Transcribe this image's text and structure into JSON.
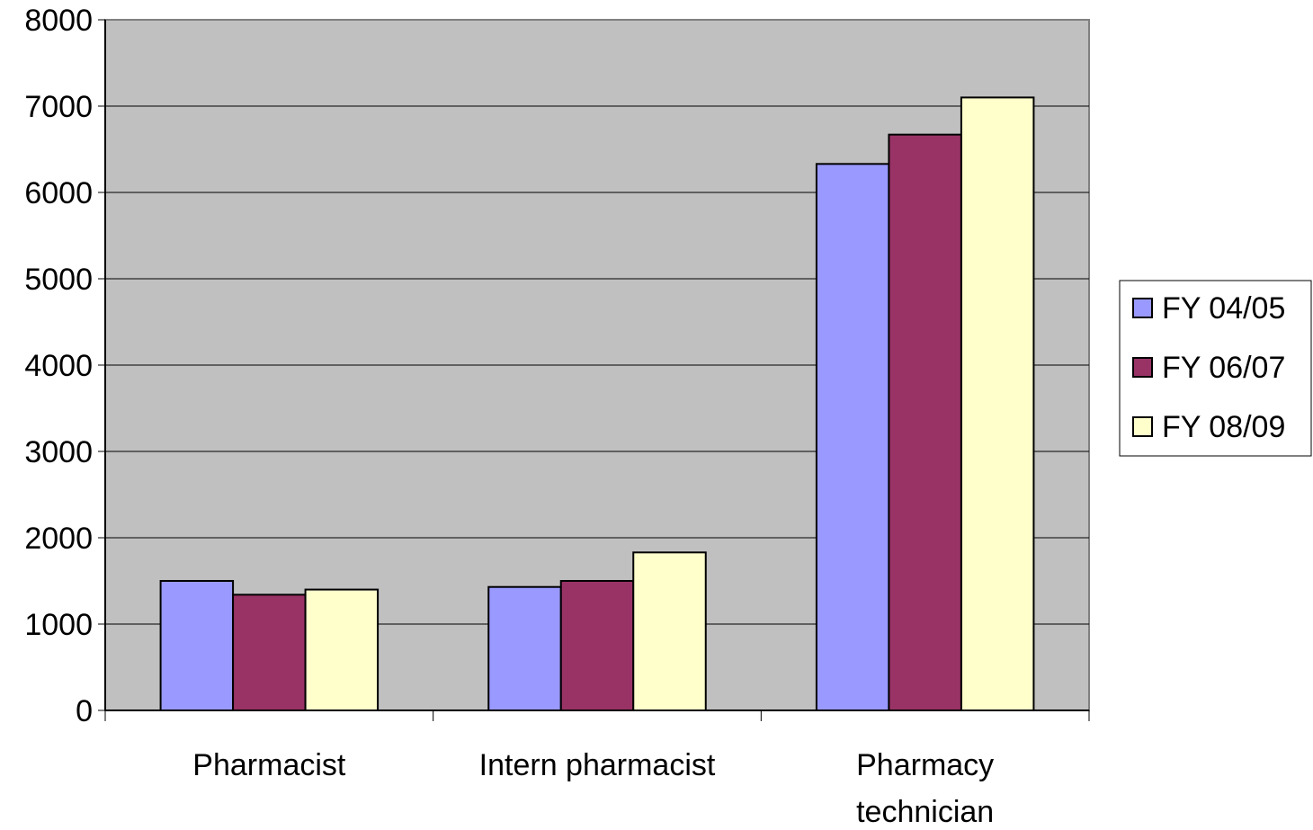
{
  "chart_data": {
    "type": "bar",
    "title": "",
    "xlabel": "",
    "ylabel": "",
    "categories": [
      [
        "Pharmacist"
      ],
      [
        "Intern pharmacist"
      ],
      [
        "Pharmacy",
        "technician"
      ]
    ],
    "series": [
      {
        "name": "FY 04/05",
        "color": "#9999ff",
        "values": [
          1500,
          1430,
          6330
        ]
      },
      {
        "name": "FY 06/07",
        "color": "#993366",
        "values": [
          1340,
          1500,
          6670
        ]
      },
      {
        "name": "FY 08/09",
        "color": "#ffffcc",
        "values": [
          1400,
          1830,
          7100
        ]
      }
    ],
    "ylim": [
      0,
      8000
    ],
    "yticks": [
      0,
      1000,
      2000,
      3000,
      4000,
      5000,
      6000,
      7000,
      8000
    ],
    "grid": true,
    "plot_background": "#c0c0c0",
    "legend_position": "right"
  }
}
